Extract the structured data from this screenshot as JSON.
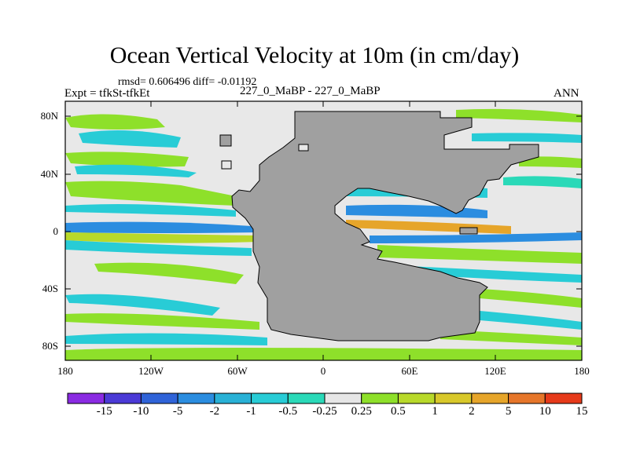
{
  "title": "Ocean Vertical Velocity at 10m (in cm/day)",
  "stats_text": "rmsd= 0.606496 diff= -0.01192",
  "center_label": "227_0_MaBP - 227_0_MaBP",
  "left_label": "Expt = tfkSt-tfkEt",
  "right_label": "ANN",
  "y_ticks": [
    "80N",
    "40N",
    "0",
    "40S",
    "80S"
  ],
  "x_ticks": [
    "180",
    "120W",
    "60W",
    "0",
    "60E",
    "120E",
    "180"
  ],
  "colorbar": {
    "labels": [
      "-15",
      "-10",
      "-5",
      "-2",
      "-1",
      "-0.5",
      "-0.25",
      "0.25",
      "0.5",
      "1",
      "2",
      "5",
      "10",
      "15"
    ],
    "colors": [
      "#8a2be2",
      "#4b3ad6",
      "#2f63d8",
      "#2b8de0",
      "#29b1d6",
      "#28ccd6",
      "#2ad9b8",
      "#e6e6e6",
      "#8ee02a",
      "#b8d92a",
      "#d8c82a",
      "#e6a52a",
      "#e6762a",
      "#e63a1a"
    ]
  },
  "colors": {
    "land": "#a0a0a0",
    "no_data": "#e8e8e8",
    "positive_weak": "#8ee02a",
    "negative_weak": "#28ccd6"
  }
}
